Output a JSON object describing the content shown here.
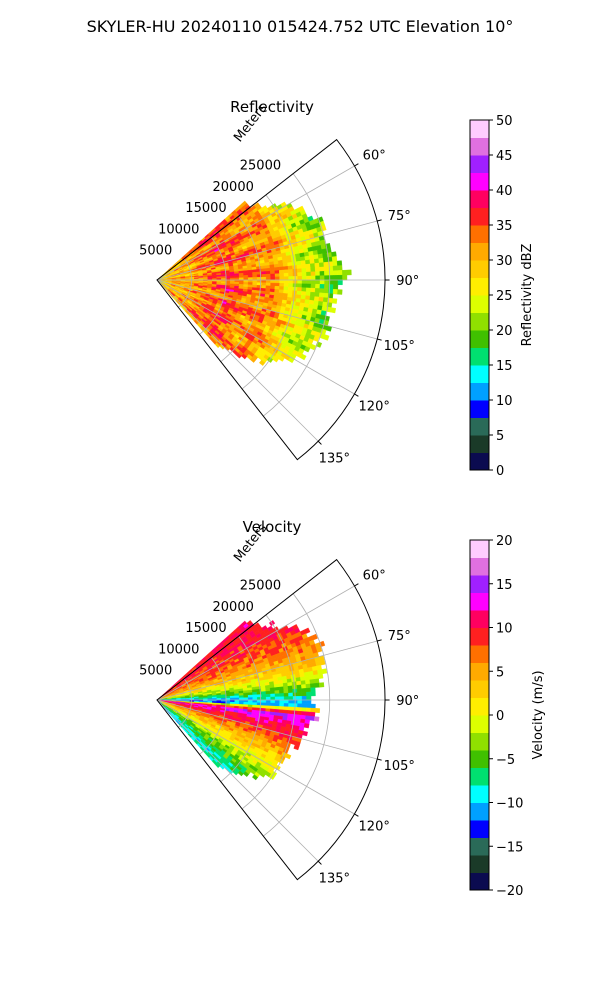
{
  "figure": {
    "title": "SKYLER-HU  20240110  015424.752 UTC Elevation 10°"
  },
  "chart_data": [
    {
      "type": "heatmap",
      "subtype": "polar-sector",
      "title": "Reflectivity",
      "radial_label": "Meters",
      "radial_ticks": [
        5000,
        10000,
        15000,
        20000,
        25000
      ],
      "radial_tick_labels": [
        "5000",
        "10000",
        "15000",
        "20000",
        "25000"
      ],
      "rmax": 33000,
      "angle_ticks": [
        60,
        75,
        90,
        105,
        120,
        135
      ],
      "angle_tick_labels": [
        "60°",
        "75°",
        "90°",
        "105°",
        "120°",
        "135°"
      ],
      "angle_range": [
        52,
        142
      ],
      "data_angle_range": [
        48,
        137
      ],
      "grid": true,
      "colorbar": {
        "label": "Reflectivity dBZ",
        "range": [
          0,
          50
        ],
        "ticks": [
          0,
          5,
          10,
          15,
          20,
          25,
          30,
          35,
          40,
          45,
          50
        ],
        "tick_labels": [
          "0",
          "5",
          "10",
          "15",
          "20",
          "25",
          "30",
          "35",
          "40",
          "45",
          "50"
        ],
        "colors": [
          "#0b0b50",
          "#1a3a28",
          "#2a6a58",
          "#0000ff",
          "#00a0ff",
          "#00ffff",
          "#00e070",
          "#40c000",
          "#90e000",
          "#ddff00",
          "#ffee00",
          "#ffcc00",
          "#ffaa00",
          "#ff7000",
          "#ff2020",
          "#ff0060",
          "#ff00ff",
          "#a020ff",
          "#e070e0",
          "#ffccff"
        ]
      },
      "profile": [
        {
          "r": 0,
          "v": 26
        },
        {
          "r": 2000,
          "v": 30
        },
        {
          "r": 5000,
          "v": 31
        },
        {
          "r": 8000,
          "v": 34
        },
        {
          "r": 11000,
          "v": 35
        },
        {
          "r": 14000,
          "v": 32
        },
        {
          "r": 17000,
          "v": 33
        },
        {
          "r": 19000,
          "v": 28
        },
        {
          "r": 22000,
          "v": 24
        },
        {
          "r": 25000,
          "v": 21
        },
        {
          "r": 27500,
          "v": 20
        }
      ],
      "max_range_profile": [
        {
          "az": 52,
          "r": 17000
        },
        {
          "az": 58,
          "r": 20000
        },
        {
          "az": 64,
          "r": 23000
        },
        {
          "az": 70,
          "r": 25000
        },
        {
          "az": 76,
          "r": 24500
        },
        {
          "az": 82,
          "r": 26000
        },
        {
          "az": 88,
          "r": 27500
        },
        {
          "az": 94,
          "r": 26000
        },
        {
          "az": 100,
          "r": 25000
        },
        {
          "az": 106,
          "r": 25500
        },
        {
          "az": 112,
          "r": 24500
        },
        {
          "az": 118,
          "r": 23000
        },
        {
          "az": 124,
          "r": 21000
        },
        {
          "az": 130,
          "r": 17500
        },
        {
          "az": 137,
          "r": 13000
        }
      ]
    },
    {
      "type": "heatmap",
      "subtype": "polar-sector",
      "title": "Velocity",
      "radial_label": "Meters",
      "radial_ticks": [
        5000,
        10000,
        15000,
        20000,
        25000
      ],
      "radial_tick_labels": [
        "5000",
        "10000",
        "15000",
        "20000",
        "25000"
      ],
      "rmax": 33000,
      "angle_ticks": [
        60,
        75,
        90,
        105,
        120,
        135
      ],
      "angle_tick_labels": [
        "60°",
        "75°",
        "90°",
        "105°",
        "120°",
        "135°"
      ],
      "angle_range": [
        52,
        142
      ],
      "data_angle_range": [
        48,
        137
      ],
      "grid": true,
      "colorbar": {
        "label": "Velocity (m/s)",
        "range": [
          -20,
          20
        ],
        "ticks": [
          -20,
          -15,
          -10,
          -5,
          0,
          5,
          10,
          15,
          20
        ],
        "tick_labels": [
          "−20",
          "−15",
          "−10",
          "−5",
          "0",
          "5",
          "10",
          "15",
          "20"
        ],
        "colors": [
          "#0b0b50",
          "#1a3a28",
          "#2a6a58",
          "#0000ff",
          "#00a0ff",
          "#00ffff",
          "#00e070",
          "#40c000",
          "#90e000",
          "#ddff00",
          "#ffee00",
          "#ffcc00",
          "#ffaa00",
          "#ff7000",
          "#ff2020",
          "#ff0060",
          "#ff00ff",
          "#a020ff",
          "#e070e0",
          "#ffccff"
        ]
      },
      "azimuth_profile": [
        {
          "az": 50,
          "v": 10
        },
        {
          "az": 60,
          "v": 9
        },
        {
          "az": 70,
          "v": 6
        },
        {
          "az": 78,
          "v": 2
        },
        {
          "az": 84,
          "v": -3
        },
        {
          "az": 88,
          "v": -8
        },
        {
          "az": 92,
          "v": -12
        },
        {
          "az": 96,
          "v": 14
        },
        {
          "az": 102,
          "v": 10
        },
        {
          "az": 110,
          "v": 6
        },
        {
          "az": 118,
          "v": 1
        },
        {
          "az": 126,
          "v": -4
        },
        {
          "az": 134,
          "v": -8
        }
      ],
      "max_range_profile": [
        {
          "az": 52,
          "r": 17000
        },
        {
          "az": 58,
          "r": 20000
        },
        {
          "az": 64,
          "r": 23000
        },
        {
          "az": 70,
          "r": 24500
        },
        {
          "az": 76,
          "r": 24000
        },
        {
          "az": 82,
          "r": 24000
        },
        {
          "az": 88,
          "r": 22000
        },
        {
          "az": 94,
          "r": 23000
        },
        {
          "az": 100,
          "r": 22000
        },
        {
          "az": 106,
          "r": 21000
        },
        {
          "az": 112,
          "r": 20000
        },
        {
          "az": 118,
          "r": 19500
        },
        {
          "az": 124,
          "r": 19500
        },
        {
          "az": 130,
          "r": 16500
        },
        {
          "az": 137,
          "r": 13000
        }
      ]
    }
  ]
}
